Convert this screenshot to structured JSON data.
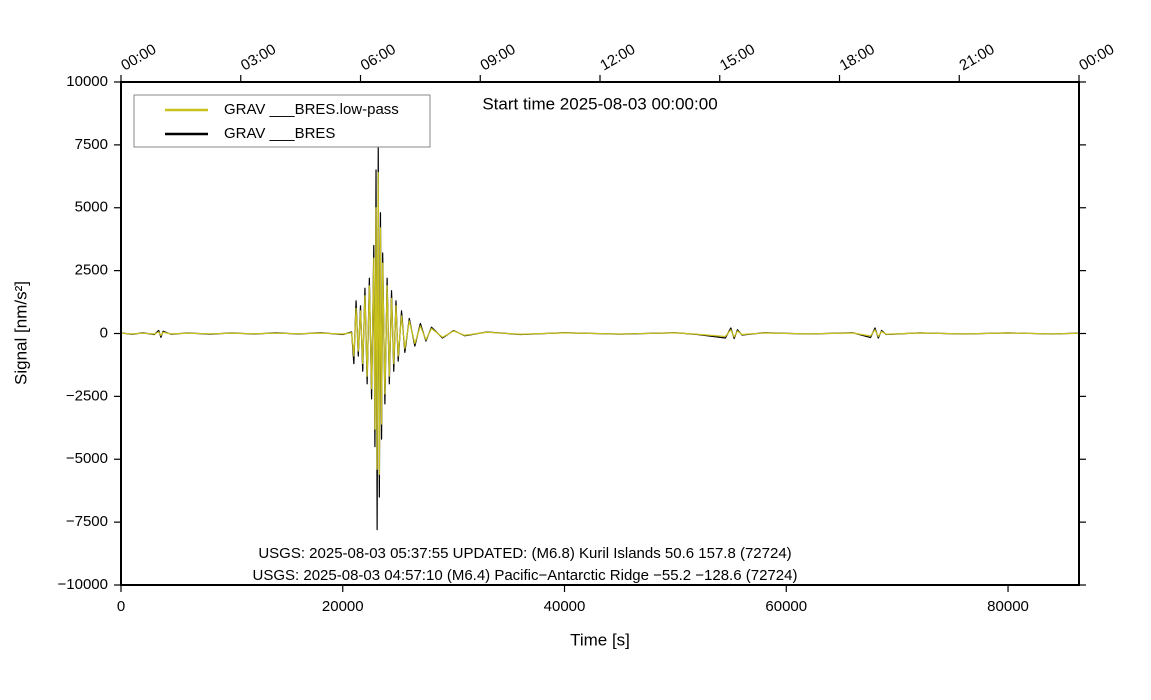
{
  "chart_data": {
    "type": "line",
    "ylabel": "Signal [nm/s²]",
    "xlabel": "Time [s]",
    "annotations": [
      "Start time 2025-08-03 00:00:00",
      "USGS: 2025-08-03 05:37:55 UPDATED: (M6.8) Kuril Islands 50.6 157.8 (72724)",
      "USGS: 2025-08-03 04:57:10 (M6.4) Pacific−Antarctic Ridge −55.2 −128.6 (72724)"
    ],
    "xlim": [
      0,
      86400
    ],
    "xticks": [
      0,
      20000,
      40000,
      60000,
      80000
    ],
    "x2ticks": [
      {
        "value": 0,
        "label": "00:00"
      },
      {
        "value": 10800,
        "label": "03:00"
      },
      {
        "value": 21600,
        "label": "06:00"
      },
      {
        "value": 32400,
        "label": "09:00"
      },
      {
        "value": 43200,
        "label": "12:00"
      },
      {
        "value": 54000,
        "label": "15:00"
      },
      {
        "value": 64800,
        "label": "18:00"
      },
      {
        "value": 75600,
        "label": "21:00"
      },
      {
        "value": 86400,
        "label": "00:00"
      }
    ],
    "ylim": [
      -10000,
      10000
    ],
    "yticks": [
      {
        "value": -10000,
        "label": "−10000"
      },
      {
        "value": -7500,
        "label": "−7500"
      },
      {
        "value": -5000,
        "label": "−5000"
      },
      {
        "value": -2500,
        "label": "−2500"
      },
      0,
      2500,
      5000,
      7500,
      10000
    ],
    "legend": "upper left",
    "x": [
      0,
      1000,
      2000,
      3000,
      3400,
      3600,
      3800,
      4500,
      6000,
      8000,
      10000,
      12000,
      14000,
      16000,
      18000,
      20000,
      20800,
      21000,
      21200,
      21400,
      21600,
      21800,
      22000,
      22200,
      22400,
      22600,
      22800,
      22900,
      23000,
      23100,
      23200,
      23300,
      23400,
      23500,
      23600,
      23800,
      24000,
      24200,
      24400,
      24600,
      24800,
      25000,
      25300,
      25600,
      26000,
      26500,
      27000,
      27500,
      28000,
      29000,
      30000,
      31000,
      33000,
      36000,
      40000,
      45000,
      50000,
      52000,
      54500,
      55000,
      55300,
      55600,
      56000,
      58000,
      62000,
      66000,
      67600,
      68000,
      68300,
      68600,
      69000,
      72000,
      76000,
      80000,
      84000,
      86400
    ],
    "series": [
      {
        "name": "GRAV ___BRES.low-pass",
        "color": "#c9c21c",
        "values": [
          10,
          -15,
          12,
          -20,
          60,
          -80,
          50,
          -15,
          10,
          -12,
          10,
          -10,
          12,
          -10,
          15,
          -20,
          30,
          -900,
          1000,
          -700,
          900,
          -1200,
          1500,
          -1700,
          1900,
          -2200,
          3000,
          -3800,
          5000,
          -5400,
          6400,
          -5600,
          4200,
          -3600,
          2800,
          -2400,
          1900,
          -1700,
          1400,
          -1200,
          1100,
          -900,
          700,
          -600,
          500,
          -400,
          300,
          -250,
          200,
          -150,
          100,
          -70,
          50,
          -30,
          25,
          -20,
          25,
          -30,
          -120,
          150,
          -140,
          100,
          -40,
          20,
          -15,
          20,
          -100,
          150,
          -120,
          80,
          -30,
          20,
          -15,
          20,
          -15,
          10
        ]
      },
      {
        "name": "GRAV ___BRES",
        "color": "#000000",
        "values": [
          20,
          -30,
          25,
          -40,
          120,
          -150,
          90,
          -30,
          20,
          -25,
          20,
          -20,
          25,
          -20,
          30,
          -40,
          60,
          -1200,
          1300,
          -900,
          1100,
          -1500,
          1800,
          -2000,
          2200,
          -2600,
          3500,
          -4500,
          6500,
          -7800,
          7400,
          -6500,
          4800,
          -4200,
          3200,
          -2800,
          2200,
          -2000,
          1700,
          -1500,
          1300,
          -1100,
          900,
          -750,
          600,
          -500,
          400,
          -300,
          250,
          -180,
          120,
          -90,
          60,
          -40,
          30,
          -25,
          30,
          -40,
          -180,
          220,
          -200,
          150,
          -60,
          30,
          -20,
          30,
          -160,
          220,
          -180,
          120,
          -40,
          25,
          -20,
          25,
          -20,
          15
        ]
      }
    ]
  }
}
